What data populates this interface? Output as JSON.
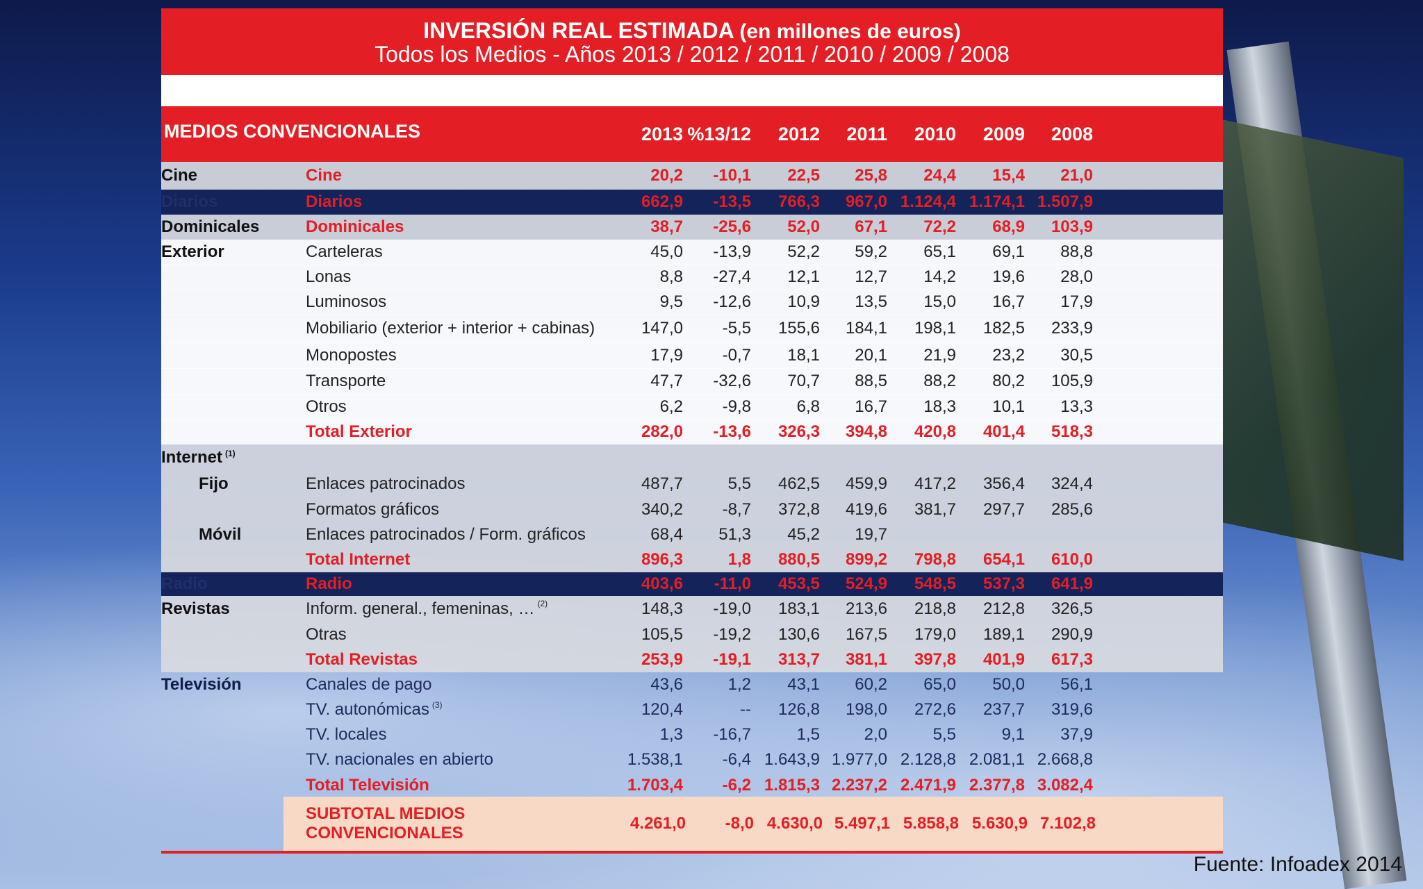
{
  "title": {
    "main": "INVERSIÓN REAL ESTIMADA",
    "unit": "(en millones de euros)",
    "subtitle": "Todos los Medios - Años 2013 / 2012 / 2011 / 2010 / 2009 / 2008"
  },
  "header": {
    "section": "MEDIOS CONVENCIONALES",
    "columns": [
      "2013",
      "%13/12",
      "2012",
      "2011",
      "2010",
      "2009",
      "2008"
    ]
  },
  "rows": [
    {
      "cat": "Cine",
      "item": "Cine",
      "values": [
        "20,2",
        "-10,1",
        "22,5",
        "25,8",
        "24,4",
        "15,4",
        "21,0"
      ]
    },
    {
      "cat": "Diarios",
      "item": "Diarios",
      "values": [
        "662,9",
        "-13,5",
        "766,3",
        "967,0",
        "1.124,4",
        "1.174,1",
        "1.507,9"
      ]
    },
    {
      "cat": "Dominicales",
      "item": "Dominicales",
      "values": [
        "38,7",
        "-25,6",
        "52,0",
        "67,1",
        "72,2",
        "68,9",
        "103,9"
      ]
    },
    {
      "cat": "Exterior",
      "item": "Carteleras",
      "values": [
        "45,0",
        "-13,9",
        "52,2",
        "59,2",
        "65,1",
        "69,1",
        "88,8"
      ]
    },
    {
      "cat": "",
      "item": "Lonas",
      "values": [
        "8,8",
        "-27,4",
        "12,1",
        "12,7",
        "14,2",
        "19,6",
        "28,0"
      ]
    },
    {
      "cat": "",
      "item": "Luminosos",
      "values": [
        "9,5",
        "-12,6",
        "10,9",
        "13,5",
        "15,0",
        "16,7",
        "17,9"
      ]
    },
    {
      "cat": "",
      "item": "Mobiliario (exterior + interior + cabinas)",
      "values": [
        "147,0",
        "-5,5",
        "155,6",
        "184,1",
        "198,1",
        "182,5",
        "233,9"
      ]
    },
    {
      "cat": "",
      "item": "Monopostes",
      "values": [
        "17,9",
        "-0,7",
        "18,1",
        "20,1",
        "21,9",
        "23,2",
        "30,5"
      ]
    },
    {
      "cat": "",
      "item": "Transporte",
      "values": [
        "47,7",
        "-32,6",
        "70,7",
        "88,5",
        "88,2",
        "80,2",
        "105,9"
      ]
    },
    {
      "cat": "",
      "item": "Otros",
      "values": [
        "6,2",
        "-9,8",
        "6,8",
        "16,7",
        "18,3",
        "10,1",
        "13,3"
      ]
    },
    {
      "cat": "",
      "item": "Total Exterior",
      "values": [
        "282,0",
        "-13,6",
        "326,3",
        "394,8",
        "420,8",
        "401,4",
        "518,3"
      ]
    },
    {
      "cat": "Internet",
      "note": "(1)",
      "item": "",
      "values": [
        "",
        "",
        "",
        "",
        "",
        "",
        ""
      ]
    },
    {
      "sub": "Fijo",
      "item": "Enlaces patrocinados",
      "values": [
        "487,7",
        "5,5",
        "462,5",
        "459,9",
        "417,2",
        "356,4",
        "324,4"
      ]
    },
    {
      "sub": "",
      "item": "Formatos gráficos",
      "values": [
        "340,2",
        "-8,7",
        "372,8",
        "419,6",
        "381,7",
        "297,7",
        "285,6"
      ]
    },
    {
      "sub": "Móvil",
      "item": "Enlaces patrocinados / Form. gráficos",
      "values": [
        "68,4",
        "51,3",
        "45,2",
        "19,7",
        "",
        "",
        ""
      ]
    },
    {
      "sub": "",
      "item": "Total Internet",
      "values": [
        "896,3",
        "1,8",
        "880,5",
        "899,2",
        "798,8",
        "654,1",
        "610,0"
      ]
    },
    {
      "cat": "Radio",
      "item": "Radio",
      "values": [
        "403,6",
        "-11,0",
        "453,5",
        "524,9",
        "548,5",
        "537,3",
        "641,9"
      ]
    },
    {
      "cat": "Revistas",
      "item": "Inform. general., femeninas, …",
      "note": "(2)",
      "values": [
        "148,3",
        "-19,0",
        "183,1",
        "213,6",
        "218,8",
        "212,8",
        "326,5"
      ]
    },
    {
      "cat": "",
      "item": "Otras",
      "values": [
        "105,5",
        "-19,2",
        "130,6",
        "167,5",
        "179,0",
        "189,1",
        "290,9"
      ]
    },
    {
      "cat": "",
      "item": "Total Revistas",
      "values": [
        "253,9",
        "-19,1",
        "313,7",
        "381,1",
        "397,8",
        "401,9",
        "617,3"
      ]
    },
    {
      "cat": "Televisión",
      "item": "Canales de pago",
      "values": [
        "43,6",
        "1,2",
        "43,1",
        "60,2",
        "65,0",
        "50,0",
        "56,1"
      ]
    },
    {
      "cat": "",
      "item": "TV. autonómicas",
      "note": "(3)",
      "values": [
        "120,4",
        "--",
        "126,8",
        "198,0",
        "272,6",
        "237,7",
        "319,6"
      ]
    },
    {
      "cat": "",
      "item": "TV. locales",
      "values": [
        "1,3",
        "-16,7",
        "1,5",
        "2,0",
        "5,5",
        "9,1",
        "37,9"
      ]
    },
    {
      "cat": "",
      "item": "TV. nacionales en abierto",
      "values": [
        "1.538,1",
        "-6,4",
        "1.643,9",
        "1.977,0",
        "2.128,8",
        "2.081,1",
        "2.668,8"
      ]
    },
    {
      "cat": "",
      "item": "Total Televisión",
      "values": [
        "1.703,4",
        "-6,2",
        "1.815,3",
        "2.237,2",
        "2.471,9",
        "2.377,8",
        "3.082,4"
      ]
    }
  ],
  "subtotal": {
    "label_line1": "SUBTOTAL MEDIOS",
    "label_line2": "CONVENCIONALES",
    "values": [
      "4.261,0",
      "-8,0",
      "4.630,0",
      "5.497,1",
      "5.858,8",
      "5.630,9",
      "7.102,8"
    ]
  },
  "source": "Fuente: Infoadex 2014"
}
